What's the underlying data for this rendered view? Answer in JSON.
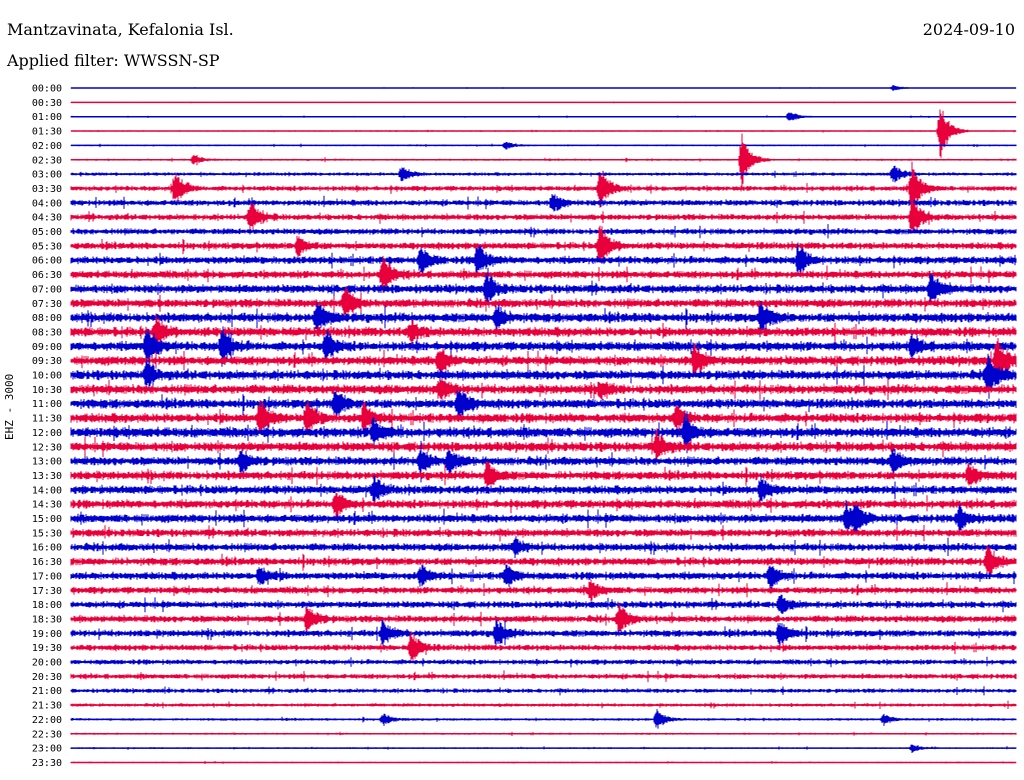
{
  "header": {
    "station": "Mantzavinata, Kefalonia Isl.",
    "date": "2024-09-10",
    "filter": "Applied filter: WWSSN-SP"
  },
  "chart_data": {
    "type": "line",
    "ylabel": "EHZ - 3000",
    "row_labels": [
      "00:00",
      "00:30",
      "01:00",
      "01:30",
      "02:00",
      "02:30",
      "03:00",
      "03:30",
      "04:00",
      "04:30",
      "05:00",
      "05:30",
      "06:00",
      "06:30",
      "07:00",
      "07:30",
      "08:00",
      "08:30",
      "09:00",
      "09:30",
      "10:00",
      "10:30",
      "11:00",
      "11:30",
      "12:00",
      "12:30",
      "13:00",
      "13:30",
      "14:00",
      "14:30",
      "15:00",
      "15:30",
      "16:00",
      "16:30",
      "17:00",
      "17:30",
      "18:00",
      "18:30",
      "19:00",
      "19:30",
      "20:00",
      "20:30",
      "21:00",
      "21:30",
      "22:00",
      "22:30",
      "23:00",
      "23:30"
    ],
    "trace_colors": [
      "#0000cc",
      "#e8003c"
    ],
    "noise_level": [
      0.5,
      0.5,
      0.7,
      0.8,
      1,
      1.2,
      2,
      3,
      3.5,
      3.5,
      3.5,
      4,
      4.5,
      4.5,
      5,
      5,
      5.5,
      5.5,
      5.5,
      5.5,
      5.5,
      5.5,
      5.5,
      5.5,
      6,
      5.5,
      5,
      5,
      5,
      5,
      5,
      4.5,
      4.5,
      4.5,
      4.5,
      4,
      4,
      4,
      4,
      3.5,
      3,
      3,
      2.5,
      2,
      1.5,
      1.2,
      1,
      0.8
    ],
    "events": [
      {
        "row": 0,
        "t": 0.87,
        "amp": 3
      },
      {
        "row": 2,
        "t": 0.76,
        "amp": 6
      },
      {
        "row": 3,
        "t": 0.92,
        "amp": 30
      },
      {
        "row": 4,
        "t": 0.46,
        "amp": 4
      },
      {
        "row": 5,
        "t": 0.71,
        "amp": 28
      },
      {
        "row": 5,
        "t": 0.13,
        "amp": 5
      },
      {
        "row": 6,
        "t": 0.35,
        "amp": 8
      },
      {
        "row": 6,
        "t": 0.87,
        "amp": 10
      },
      {
        "row": 7,
        "t": 0.11,
        "amp": 18
      },
      {
        "row": 7,
        "t": 0.56,
        "amp": 20
      },
      {
        "row": 7,
        "t": 0.89,
        "amp": 26
      },
      {
        "row": 8,
        "t": 0.51,
        "amp": 10
      },
      {
        "row": 9,
        "t": 0.19,
        "amp": 16
      },
      {
        "row": 9,
        "t": 0.89,
        "amp": 20
      },
      {
        "row": 11,
        "t": 0.24,
        "amp": 10
      },
      {
        "row": 11,
        "t": 0.56,
        "amp": 22
      },
      {
        "row": 12,
        "t": 0.37,
        "amp": 14
      },
      {
        "row": 12,
        "t": 0.43,
        "amp": 18
      },
      {
        "row": 12,
        "t": 0.77,
        "amp": 16
      },
      {
        "row": 13,
        "t": 0.33,
        "amp": 18
      },
      {
        "row": 14,
        "t": 0.44,
        "amp": 16
      },
      {
        "row": 14,
        "t": 0.91,
        "amp": 16
      },
      {
        "row": 15,
        "t": 0.29,
        "amp": 16
      },
      {
        "row": 16,
        "t": 0.26,
        "amp": 16
      },
      {
        "row": 16,
        "t": 0.45,
        "amp": 12
      },
      {
        "row": 16,
        "t": 0.73,
        "amp": 16
      },
      {
        "row": 17,
        "t": 0.09,
        "amp": 14
      },
      {
        "row": 17,
        "t": 0.36,
        "amp": 10
      },
      {
        "row": 18,
        "t": 0.08,
        "amp": 22
      },
      {
        "row": 18,
        "t": 0.16,
        "amp": 20
      },
      {
        "row": 18,
        "t": 0.27,
        "amp": 14
      },
      {
        "row": 18,
        "t": 0.89,
        "amp": 10
      },
      {
        "row": 19,
        "t": 0.39,
        "amp": 14
      },
      {
        "row": 19,
        "t": 0.66,
        "amp": 16
      },
      {
        "row": 19,
        "t": 0.98,
        "amp": 24
      },
      {
        "row": 20,
        "t": 0.97,
        "amp": 22
      },
      {
        "row": 20,
        "t": 0.08,
        "amp": 12
      },
      {
        "row": 21,
        "t": 0.56,
        "amp": 8
      },
      {
        "row": 21,
        "t": 0.39,
        "amp": 10
      },
      {
        "row": 22,
        "t": 0.28,
        "amp": 14
      },
      {
        "row": 22,
        "t": 0.41,
        "amp": 16
      },
      {
        "row": 23,
        "t": 0.2,
        "amp": 18
      },
      {
        "row": 23,
        "t": 0.25,
        "amp": 16
      },
      {
        "row": 23,
        "t": 0.31,
        "amp": 14
      },
      {
        "row": 23,
        "t": 0.64,
        "amp": 12
      },
      {
        "row": 24,
        "t": 0.32,
        "amp": 14
      },
      {
        "row": 24,
        "t": 0.65,
        "amp": 16
      },
      {
        "row": 25,
        "t": 0.62,
        "amp": 14
      },
      {
        "row": 26,
        "t": 0.18,
        "amp": 12
      },
      {
        "row": 26,
        "t": 0.37,
        "amp": 14
      },
      {
        "row": 26,
        "t": 0.4,
        "amp": 12
      },
      {
        "row": 26,
        "t": 0.87,
        "amp": 12
      },
      {
        "row": 27,
        "t": 0.44,
        "amp": 14
      },
      {
        "row": 27,
        "t": 0.95,
        "amp": 10
      },
      {
        "row": 28,
        "t": 0.32,
        "amp": 12
      },
      {
        "row": 28,
        "t": 0.73,
        "amp": 12
      },
      {
        "row": 29,
        "t": 0.28,
        "amp": 12
      },
      {
        "row": 30,
        "t": 0.82,
        "amp": 14
      },
      {
        "row": 30,
        "t": 0.83,
        "amp": 12
      },
      {
        "row": 30,
        "t": 0.94,
        "amp": 12
      },
      {
        "row": 32,
        "t": 0.47,
        "amp": 8
      },
      {
        "row": 33,
        "t": 0.97,
        "amp": 16
      },
      {
        "row": 34,
        "t": 0.2,
        "amp": 10
      },
      {
        "row": 34,
        "t": 0.37,
        "amp": 10
      },
      {
        "row": 34,
        "t": 0.46,
        "amp": 12
      },
      {
        "row": 34,
        "t": 0.74,
        "amp": 12
      },
      {
        "row": 35,
        "t": 0.55,
        "amp": 10
      },
      {
        "row": 36,
        "t": 0.75,
        "amp": 10
      },
      {
        "row": 37,
        "t": 0.25,
        "amp": 14
      },
      {
        "row": 37,
        "t": 0.58,
        "amp": 14
      },
      {
        "row": 38,
        "t": 0.33,
        "amp": 12
      },
      {
        "row": 38,
        "t": 0.45,
        "amp": 14
      },
      {
        "row": 38,
        "t": 0.75,
        "amp": 14
      },
      {
        "row": 39,
        "t": 0.36,
        "amp": 16
      },
      {
        "row": 44,
        "t": 0.33,
        "amp": 6
      },
      {
        "row": 44,
        "t": 0.62,
        "amp": 10
      },
      {
        "row": 44,
        "t": 0.86,
        "amp": 5
      },
      {
        "row": 46,
        "t": 0.89,
        "amp": 4
      }
    ]
  }
}
